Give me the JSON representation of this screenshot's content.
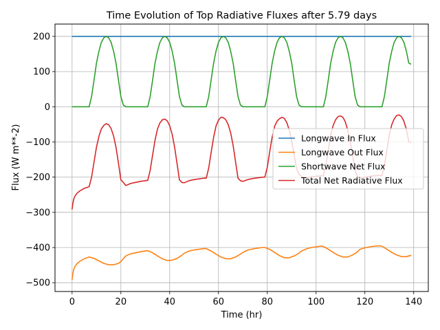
{
  "chart_data": {
    "type": "line",
    "title": "Time Evolution of Top Radiative Fluxes after 5.79 days",
    "xlabel": "Time (hr)",
    "ylabel": "Flux (W m**-2)",
    "xlim": [
      -7,
      146
    ],
    "ylim": [
      -525,
      235
    ],
    "xticks": [
      0,
      20,
      40,
      60,
      80,
      100,
      120,
      140
    ],
    "yticks": [
      -500,
      -400,
      -300,
      -200,
      -100,
      0,
      100,
      200
    ],
    "grid": true,
    "legend_position": "center-right",
    "series": [
      {
        "name": "Longwave In Flux",
        "color": "#1f77b4",
        "x": [
          0,
          139
        ],
        "values": [
          200,
          200
        ]
      },
      {
        "name": "Longwave Out Flux",
        "color": "#ff7f0e",
        "x": [
          0,
          0.3,
          0.7,
          1.2,
          2,
          3,
          4,
          5,
          7,
          9,
          11,
          13,
          15,
          17,
          19,
          20,
          21,
          22,
          24,
          26,
          28,
          30,
          31,
          33,
          35,
          37,
          39,
          41,
          43,
          45,
          46,
          48,
          50,
          52,
          54,
          55,
          57,
          59,
          61,
          63,
          65,
          67,
          69,
          70,
          72,
          74,
          76,
          78,
          79,
          81,
          83,
          85,
          87,
          89,
          91,
          93,
          94,
          96,
          98,
          100,
          102,
          103,
          105,
          107,
          109,
          111,
          113,
          115,
          117,
          118,
          120,
          122,
          124,
          126,
          127,
          129,
          131,
          133,
          135,
          137,
          139
        ],
        "values": [
          -492,
          -475,
          -462,
          -454,
          -446,
          -440,
          -436,
          -432,
          -427,
          -431,
          -438,
          -445,
          -449,
          -449,
          -445,
          -440,
          -432,
          -424,
          -418,
          -415,
          -412,
          -410,
          -409,
          -415,
          -424,
          -432,
          -437,
          -436,
          -431,
          -422,
          -416,
          -410,
          -407,
          -405,
          -403,
          -403,
          -410,
          -419,
          -427,
          -432,
          -432,
          -427,
          -419,
          -414,
          -407,
          -404,
          -402,
          -400,
          -400,
          -405,
          -414,
          -423,
          -429,
          -429,
          -424,
          -416,
          -410,
          -404,
          -400,
          -398,
          -396,
          -397,
          -405,
          -414,
          -422,
          -427,
          -427,
          -421,
          -412,
          -405,
          -401,
          -398,
          -396,
          -395,
          -396,
          -405,
          -414,
          -421,
          -426,
          -426,
          -422
        ]
      },
      {
        "name": "Shortwave Net Flux",
        "color": "#2ca02c",
        "x": [
          0,
          7,
          8,
          9,
          10,
          11,
          12,
          13,
          14,
          15,
          16,
          17,
          18,
          19,
          20,
          21,
          22,
          31,
          32,
          33,
          34,
          35,
          36,
          37,
          38,
          39,
          40,
          41,
          42,
          43,
          44,
          45,
          46,
          55,
          56,
          57,
          58,
          59,
          60,
          61,
          62,
          63,
          64,
          65,
          66,
          67,
          68,
          69,
          70,
          79,
          80,
          81,
          82,
          83,
          84,
          85,
          86,
          87,
          88,
          89,
          90,
          91,
          92,
          93,
          94,
          103,
          104,
          105,
          106,
          107,
          108,
          109,
          110,
          111,
          112,
          113,
          114,
          115,
          116,
          117,
          118,
          127,
          128,
          129,
          130,
          131,
          132,
          133,
          134,
          135,
          136,
          137,
          138,
          139
        ],
        "values": [
          0,
          0,
          29,
          76,
          124,
          158,
          183,
          196,
          200,
          196,
          183,
          158,
          124,
          76,
          29,
          5,
          0,
          0,
          29,
          76,
          124,
          158,
          183,
          196,
          200,
          196,
          183,
          158,
          124,
          76,
          29,
          5,
          0,
          0,
          29,
          76,
          124,
          158,
          183,
          196,
          200,
          196,
          183,
          158,
          124,
          76,
          29,
          5,
          0,
          0,
          29,
          76,
          124,
          158,
          183,
          196,
          200,
          196,
          183,
          158,
          124,
          76,
          29,
          5,
          0,
          0,
          29,
          76,
          124,
          158,
          183,
          196,
          200,
          196,
          183,
          158,
          124,
          76,
          29,
          5,
          0,
          0,
          29,
          76,
          124,
          158,
          183,
          196,
          200,
          196,
          183,
          158,
          124,
          121
        ]
      },
      {
        "name": "Total Net Radiative Flux",
        "color": "#d62728",
        "x": [
          0,
          0.3,
          0.7,
          1.2,
          2,
          3,
          4,
          5,
          7,
          8,
          9,
          10,
          11,
          12,
          13,
          14,
          15,
          16,
          17,
          18,
          19,
          20,
          21,
          22,
          24,
          26,
          28,
          30,
          31,
          32,
          33,
          34,
          35,
          36,
          37,
          38,
          39,
          40,
          41,
          42,
          43,
          44,
          45,
          46,
          48,
          50,
          52,
          54,
          55,
          56,
          57,
          58,
          59,
          60,
          61,
          62,
          63,
          64,
          65,
          66,
          67,
          68,
          69,
          70,
          72,
          74,
          76,
          78,
          79,
          80,
          81,
          82,
          83,
          84,
          85,
          86,
          87,
          88,
          89,
          90,
          91,
          92,
          93,
          94,
          96,
          98,
          100,
          102,
          103,
          104,
          105,
          106,
          107,
          108,
          109,
          110,
          111,
          112,
          113,
          114,
          115,
          116,
          117,
          118,
          120,
          122,
          124,
          126,
          127,
          128,
          129,
          130,
          131,
          132,
          133,
          134,
          135,
          136,
          137,
          138,
          139
        ],
        "values": [
          -292,
          -275,
          -262,
          -254,
          -246,
          -240,
          -236,
          -232,
          -227,
          -200,
          -157,
          -115,
          -84,
          -63,
          -53,
          -48,
          -51,
          -62,
          -83,
          -115,
          -160,
          -208,
          -215,
          -224,
          -218,
          -215,
          -212,
          -210,
          -209,
          -181,
          -137,
          -95,
          -63,
          -46,
          -37,
          -35,
          -40,
          -54,
          -78,
          -114,
          -161,
          -208,
          -215,
          -216,
          -210,
          -207,
          -205,
          -203,
          -203,
          -174,
          -130,
          -87,
          -55,
          -38,
          -30,
          -31,
          -37,
          -51,
          -74,
          -110,
          -156,
          -203,
          -210,
          -212,
          -207,
          -204,
          -202,
          -200,
          -200,
          -172,
          -128,
          -86,
          -56,
          -41,
          -34,
          -30,
          -33,
          -45,
          -66,
          -98,
          -136,
          -176,
          -192,
          -198,
          -202,
          -199,
          -198,
          -196,
          -196,
          -167,
          -124,
          -82,
          -53,
          -37,
          -28,
          -26,
          -30,
          -43,
          -67,
          -99,
          -140,
          -181,
          -199,
          -203,
          -200,
          -198,
          -196,
          -195,
          -196,
          -167,
          -124,
          -80,
          -51,
          -35,
          -25,
          -23,
          -28,
          -41,
          -64,
          -99,
          -102
        ]
      }
    ]
  }
}
